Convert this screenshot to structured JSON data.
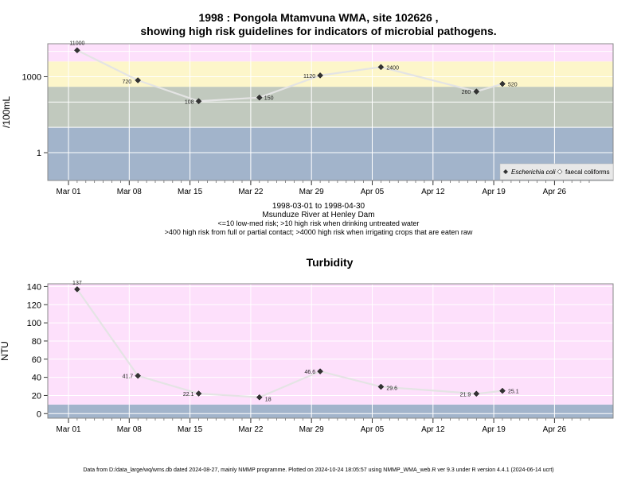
{
  "main_title_line1": "1998 : Pongola Mtamvuna WMA, site 102626 ,",
  "main_title_line2": "showing high risk guidelines for indicators of microbial pathogens.",
  "info_date_range": "1998-03-01 to 1998-04-30",
  "info_site": "Msunduze River at Henley Dam",
  "info_guideline1": "<=10 low-med risk; >10 high risk when drinking untreated water",
  "info_guideline2": ">400 high risk from full or partial contact; >4000 high risk when irrigating crops that are eaten raw",
  "footer": "Data from D:/data_large/wq/wms.db dated 2024-08-27, mainly NMMP programme. Plotted on 2024-10-24 18:05:57 using NMMP_WMA_web.R ver 9.3 under R version 4.4.1 (2024-06-14 ucrt)",
  "colors": {
    "band_low": "#a2b4cb",
    "band_mid": "#c1c9be",
    "band_high": "#fdf6ca",
    "band_top": "#fde0fb",
    "line": "#e4e4e4",
    "marker": "#333333",
    "grid": "#ffffff"
  },
  "chart_data": [
    {
      "type": "line",
      "ylabel": "/100mL",
      "y_scale": "log",
      "ylim": [
        0.08,
        20000
      ],
      "x_ticks": [
        "Mar 01",
        "Mar 08",
        "Mar 15",
        "Mar 22",
        "Mar 29",
        "Apr 05",
        "Apr 12",
        "Apr 19",
        "Apr 26"
      ],
      "y_ticks": [
        "1",
        "1000"
      ],
      "risk_bands": [
        {
          "from": 0.08,
          "to": 10,
          "color": "#a2b4cb"
        },
        {
          "from": 10,
          "to": 400,
          "color": "#c1c9be"
        },
        {
          "from": 400,
          "to": 4000,
          "color": "#fdf6ca"
        },
        {
          "from": 4000,
          "to": 20000,
          "color": "#fde0fb"
        }
      ],
      "legend": {
        "placement": "bottom-right",
        "entries": [
          "Escherichia coli",
          "faecal coliforms"
        ]
      },
      "series": [
        {
          "name": "Escherichia coli",
          "points": [
            {
              "x": "1998-03-02",
              "y": 11000,
              "label": "11000"
            },
            {
              "x": "1998-03-09",
              "y": 720,
              "label": "720"
            },
            {
              "x": "1998-03-16",
              "y": 108,
              "label": "108"
            },
            {
              "x": "1998-03-23",
              "y": 150,
              "label": "150"
            },
            {
              "x": "1998-03-30",
              "y": 1120,
              "label": "1120"
            },
            {
              "x": "1998-04-06",
              "y": 2400,
              "label": "2400"
            },
            {
              "x": "1998-04-17",
              "y": 260,
              "label": "260"
            },
            {
              "x": "1998-04-20",
              "y": 520,
              "label": "520"
            }
          ]
        }
      ]
    },
    {
      "type": "line",
      "title": "Turbidity",
      "ylabel": "NTU",
      "ylim": [
        -5,
        143
      ],
      "x_ticks": [
        "Mar 01",
        "Mar 08",
        "Mar 15",
        "Mar 22",
        "Mar 29",
        "Apr 05",
        "Apr 12",
        "Apr 19",
        "Apr 26"
      ],
      "y_ticks": [
        "0",
        "20",
        "40",
        "60",
        "80",
        "100",
        "120",
        "140"
      ],
      "risk_bands": [
        {
          "from": -5,
          "to": 10,
          "color": "#a2b4cb"
        },
        {
          "from": 10,
          "to": 143,
          "color": "#fde0fb"
        }
      ],
      "series": [
        {
          "points": [
            {
              "x": "1998-03-02",
              "y": 137,
              "label": "137"
            },
            {
              "x": "1998-03-09",
              "y": 41.7,
              "label": "41.7"
            },
            {
              "x": "1998-03-16",
              "y": 22.1,
              "label": "22.1"
            },
            {
              "x": "1998-03-23",
              "y": 18,
              "label": "18"
            },
            {
              "x": "1998-03-30",
              "y": 46.6,
              "label": "46.6"
            },
            {
              "x": "1998-04-06",
              "y": 29.6,
              "label": "29.6"
            },
            {
              "x": "1998-04-17",
              "y": 21.9,
              "label": "21.9"
            },
            {
              "x": "1998-04-20",
              "y": 25.1,
              "label": "25.1"
            }
          ]
        }
      ]
    }
  ]
}
